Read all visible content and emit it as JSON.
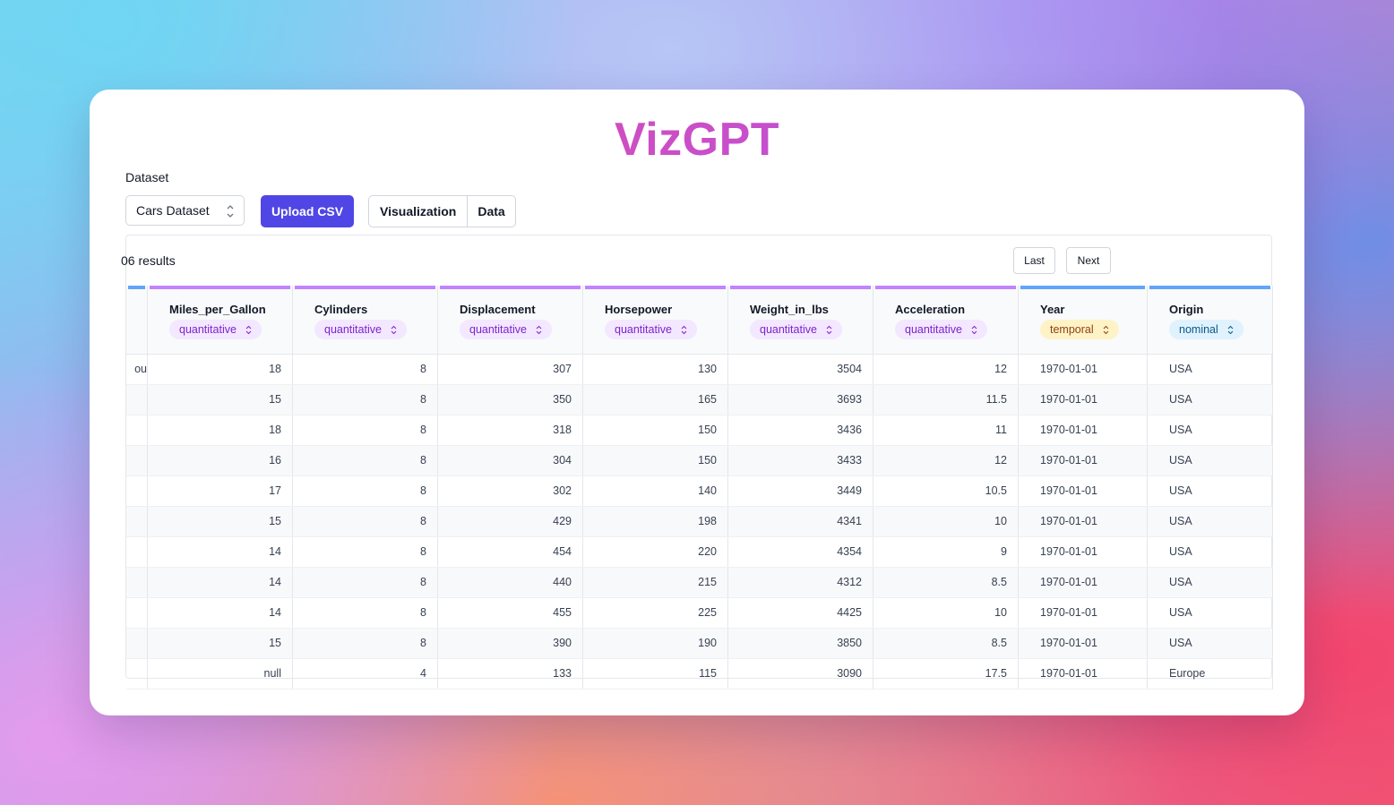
{
  "app": {
    "title": "VizGPT"
  },
  "dataset": {
    "label": "Dataset",
    "selected": "Cars Dataset",
    "upload_label": "Upload CSV"
  },
  "tabs": [
    {
      "label": "Visualization"
    },
    {
      "label": "Data"
    }
  ],
  "pagination": {
    "results_text": "06 results",
    "last_label": "Last",
    "next_label": "Next"
  },
  "columns": [
    {
      "name": "",
      "type": "",
      "color": "#60a5fa"
    },
    {
      "name": "Miles_per_Gallon",
      "type": "quantitative",
      "color": "#c084fc"
    },
    {
      "name": "Cylinders",
      "type": "quantitative",
      "color": "#c084fc"
    },
    {
      "name": "Displacement",
      "type": "quantitative",
      "color": "#c084fc"
    },
    {
      "name": "Horsepower",
      "type": "quantitative",
      "color": "#c084fc"
    },
    {
      "name": "Weight_in_lbs",
      "type": "quantitative",
      "color": "#c084fc"
    },
    {
      "name": "Acceleration",
      "type": "quantitative",
      "color": "#c084fc"
    },
    {
      "name": "Year",
      "type": "temporal",
      "color": "#60a5fa"
    },
    {
      "name": "Origin",
      "type": "nominal",
      "color": "#60a5fa"
    }
  ],
  "type_colors": {
    "quantitative": {
      "bg": "#f3e8ff",
      "fg": "#7e22ce"
    },
    "temporal": {
      "bg": "#fef3c7",
      "fg": "#92400e"
    },
    "nominal": {
      "bg": "#e0f2fe",
      "fg": "#075985"
    }
  },
  "rows": [
    [
      "ou",
      "18",
      "8",
      "307",
      "130",
      "3504",
      "12",
      "1970-01-01",
      "USA"
    ],
    [
      "",
      "15",
      "8",
      "350",
      "165",
      "3693",
      "11.5",
      "1970-01-01",
      "USA"
    ],
    [
      "",
      "18",
      "8",
      "318",
      "150",
      "3436",
      "11",
      "1970-01-01",
      "USA"
    ],
    [
      "",
      "16",
      "8",
      "304",
      "150",
      "3433",
      "12",
      "1970-01-01",
      "USA"
    ],
    [
      "",
      "17",
      "8",
      "302",
      "140",
      "3449",
      "10.5",
      "1970-01-01",
      "USA"
    ],
    [
      "",
      "15",
      "8",
      "429",
      "198",
      "4341",
      "10",
      "1970-01-01",
      "USA"
    ],
    [
      "",
      "14",
      "8",
      "454",
      "220",
      "4354",
      "9",
      "1970-01-01",
      "USA"
    ],
    [
      "",
      "14",
      "8",
      "440",
      "215",
      "4312",
      "8.5",
      "1970-01-01",
      "USA"
    ],
    [
      "",
      "14",
      "8",
      "455",
      "225",
      "4425",
      "10",
      "1970-01-01",
      "USA"
    ],
    [
      "",
      "15",
      "8",
      "390",
      "190",
      "3850",
      "8.5",
      "1970-01-01",
      "USA"
    ],
    [
      "",
      "null",
      "4",
      "133",
      "115",
      "3090",
      "17.5",
      "1970-01-01",
      "Europe"
    ]
  ]
}
